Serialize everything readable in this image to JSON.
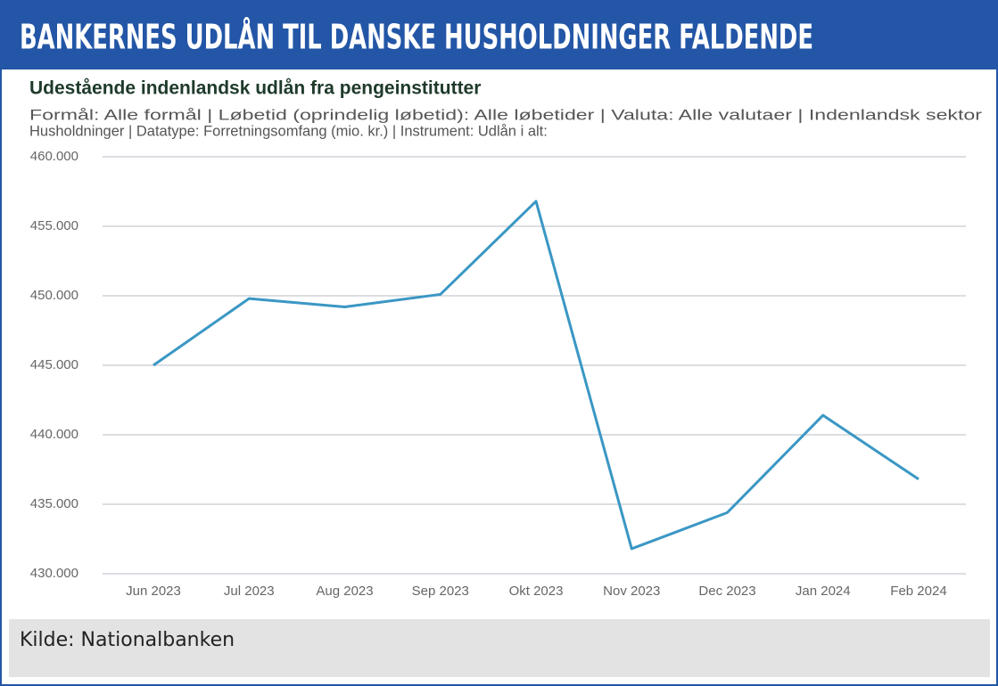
{
  "header": {
    "title": "BANKERNES UDLÅN TIL DANSKE HUSHOLDNINGER FALDENDE"
  },
  "chart_data": {
    "type": "line",
    "title": "Udestående indenlandsk udlån fra pengeinstitutter",
    "subtitle": [
      "Formål: Alle formål | Løbetid (oprindelig løbetid): Alle løbetider | Valuta: Alle valutaer | Indenlandsk sektor",
      "Husholdninger | Datatype: Forretningsomfang (mio. kr.) | Instrument: Udlån i alt:"
    ],
    "categories": [
      "Jun 2023",
      "Jul 2023",
      "Aug 2023",
      "Sep 2023",
      "Okt 2023",
      "Nov 2023",
      "Dec 2023",
      "Jan 2024",
      "Feb 2024"
    ],
    "values": [
      445000,
      449800,
      449200,
      450100,
      456800,
      431800,
      434400,
      441400,
      436800
    ],
    "color": "#3a97c4",
    "ylim": [
      430000,
      460000
    ],
    "yticks": [
      {
        "value": 430000,
        "label": "430.000"
      },
      {
        "value": 435000,
        "label": "435.000"
      },
      {
        "value": 440000,
        "label": "440.000"
      },
      {
        "value": 445000,
        "label": "445.000"
      },
      {
        "value": 450000,
        "label": "450.000"
      },
      {
        "value": 455000,
        "label": "455.000"
      },
      {
        "value": 460000,
        "label": "460.000"
      }
    ],
    "grid": true
  },
  "footer": {
    "source": "Kilde: Nationalbanken"
  }
}
